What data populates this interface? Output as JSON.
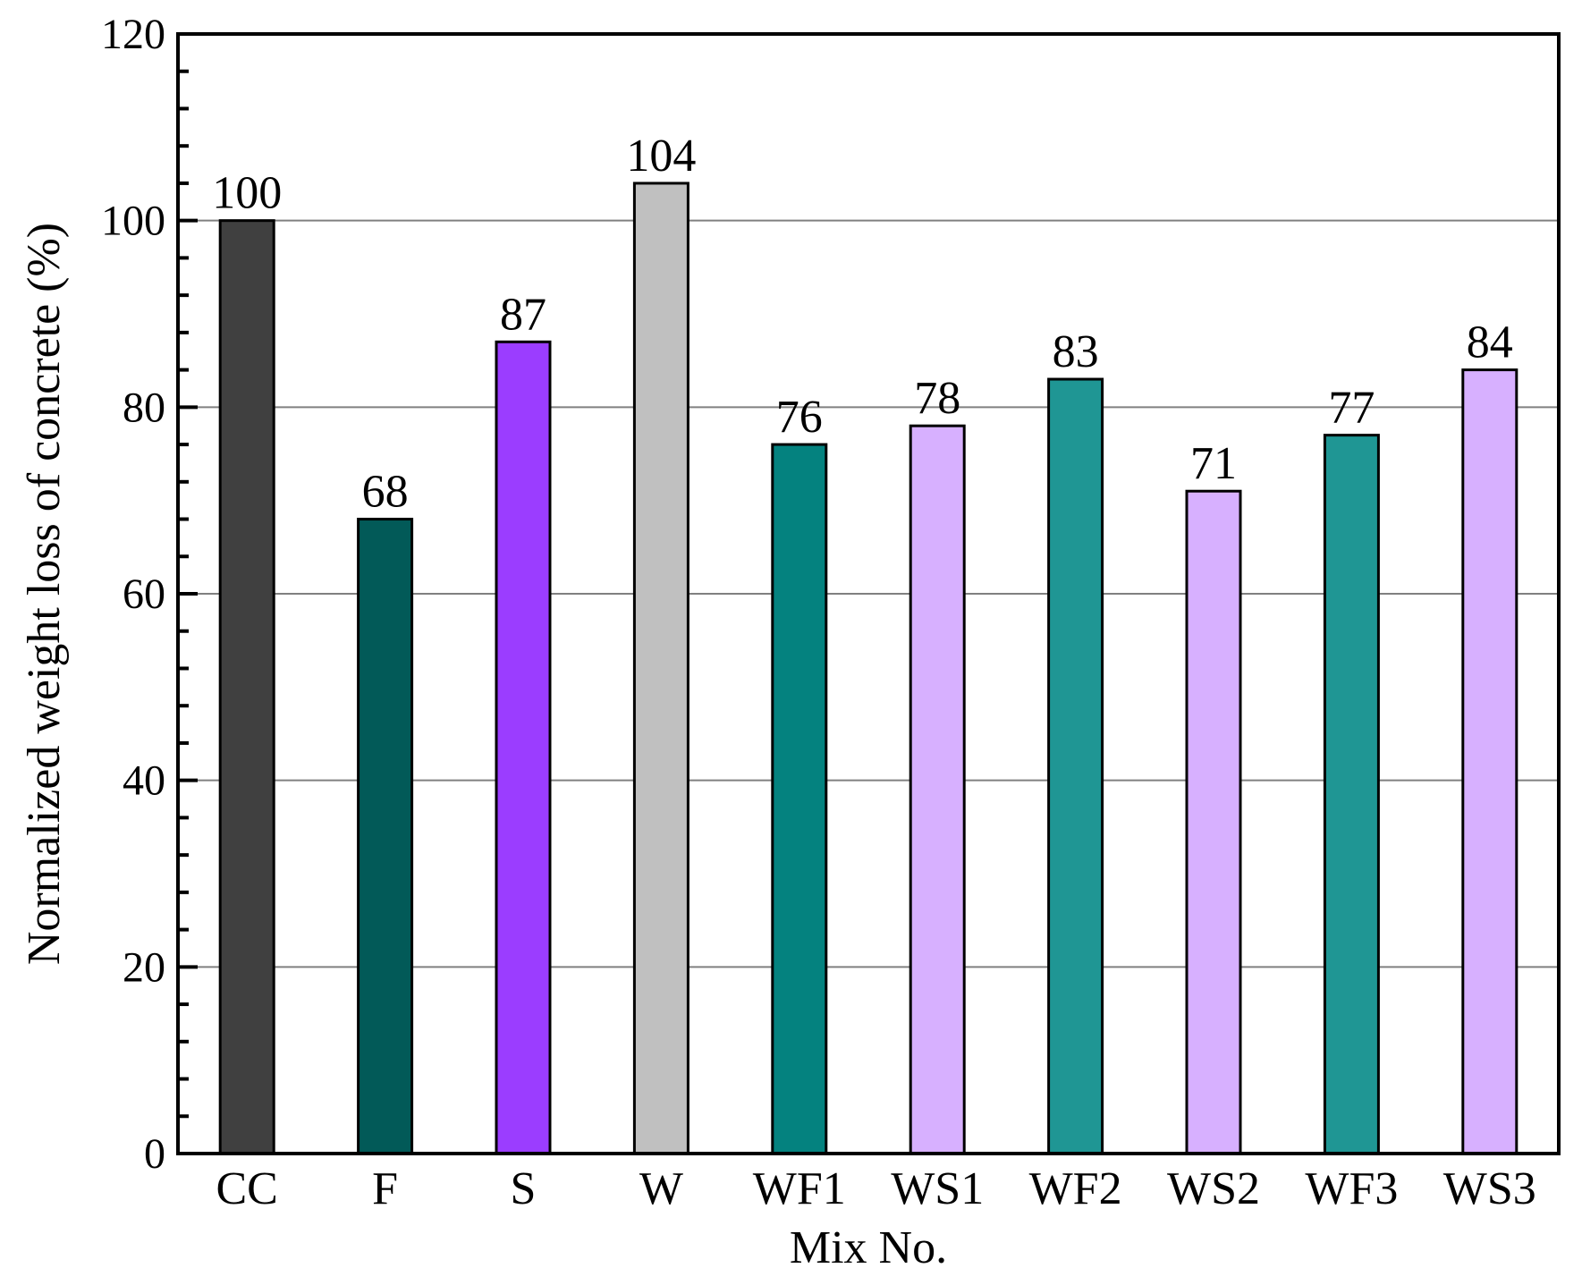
{
  "chart_data": {
    "type": "bar",
    "title": "",
    "xlabel": "Mix No.",
    "ylabel": "Normalized weight loss of concrete (%)",
    "ylim": [
      0,
      120
    ],
    "yticks": [
      0,
      20,
      40,
      60,
      80,
      100,
      120
    ],
    "categories": [
      "CC",
      "F",
      "S",
      "W",
      "WF1",
      "WS1",
      "WF2",
      "WS2",
      "WF3",
      "WS3"
    ],
    "values": [
      100,
      68,
      87,
      104,
      76,
      78,
      83,
      71,
      77,
      84
    ],
    "data_labels": [
      "100",
      "68",
      "87",
      "104",
      "76",
      "78",
      "83",
      "71",
      "77",
      "84"
    ],
    "bar_colors": [
      "#404040",
      "#025a58",
      "#9b3dff",
      "#c0c0c0",
      "#04827f",
      "#d7b0ff",
      "#1f9694",
      "#d7b0ff",
      "#1f9694",
      "#d7b0ff"
    ],
    "grid": "horizontal",
    "legend": "none"
  }
}
